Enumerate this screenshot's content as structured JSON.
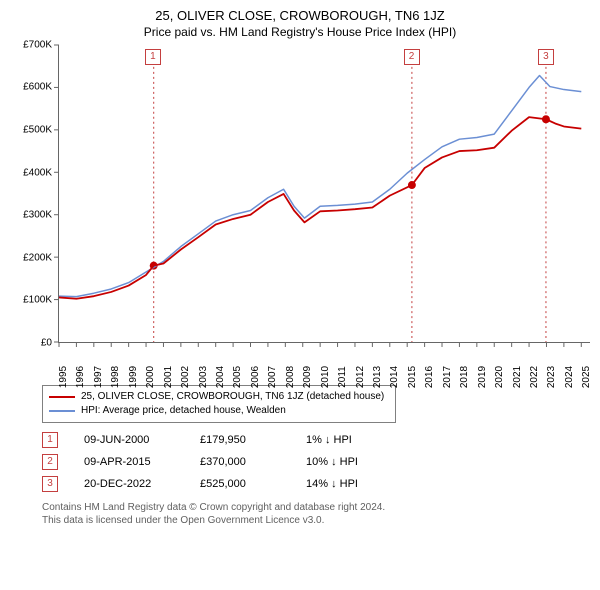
{
  "title": "25, OLIVER CLOSE, CROWBOROUGH, TN6 1JZ",
  "subtitle": "Price paid vs. HM Land Registry's House Price Index (HPI)",
  "chart": {
    "type": "line",
    "background_color": "#ffffff",
    "ylim": [
      0,
      700000
    ],
    "ytick_step": 100000,
    "ytick_labels": [
      "£0",
      "£100K",
      "£200K",
      "£300K",
      "£400K",
      "£500K",
      "£600K",
      "£700K"
    ],
    "xlim": [
      1995,
      2025.5
    ],
    "x_years": [
      1995,
      1996,
      1997,
      1998,
      1999,
      2000,
      2001,
      2002,
      2003,
      2004,
      2005,
      2006,
      2007,
      2008,
      2009,
      2010,
      2011,
      2012,
      2013,
      2014,
      2015,
      2016,
      2017,
      2018,
      2019,
      2020,
      2021,
      2022,
      2023,
      2024,
      2025
    ],
    "axis_color": "#666666",
    "marker_line_color": "#c43f3f",
    "marker_dash": "2,3",
    "series": [
      {
        "name": "HPI: Average price, detached house, Wealden",
        "color": "#6b8fd4",
        "line_width": 1.5,
        "data": [
          [
            1995.0,
            108000
          ],
          [
            1996.0,
            107000
          ],
          [
            1997.0,
            115000
          ],
          [
            1998.0,
            125000
          ],
          [
            1999.0,
            140000
          ],
          [
            2000.0,
            165000
          ],
          [
            2001.0,
            190000
          ],
          [
            2002.0,
            225000
          ],
          [
            2003.0,
            255000
          ],
          [
            2004.0,
            285000
          ],
          [
            2005.0,
            300000
          ],
          [
            2006.0,
            310000
          ],
          [
            2007.0,
            340000
          ],
          [
            2007.9,
            360000
          ],
          [
            2008.5,
            320000
          ],
          [
            2009.1,
            292000
          ],
          [
            2010.0,
            320000
          ],
          [
            2011.0,
            322000
          ],
          [
            2012.0,
            325000
          ],
          [
            2013.0,
            330000
          ],
          [
            2014.0,
            360000
          ],
          [
            2015.0,
            398000
          ],
          [
            2016.0,
            430000
          ],
          [
            2017.0,
            460000
          ],
          [
            2018.0,
            478000
          ],
          [
            2019.0,
            482000
          ],
          [
            2020.0,
            490000
          ],
          [
            2021.0,
            545000
          ],
          [
            2022.0,
            600000
          ],
          [
            2022.6,
            628000
          ],
          [
            2023.2,
            602000
          ],
          [
            2024.0,
            595000
          ],
          [
            2025.0,
            590000
          ]
        ]
      },
      {
        "name": "25, OLIVER CLOSE, CROWBOROUGH, TN6 1JZ (detached house)",
        "color": "#c70000",
        "line_width": 1.8,
        "data": [
          [
            1995.0,
            105000
          ],
          [
            1996.0,
            102000
          ],
          [
            1997.0,
            108000
          ],
          [
            1998.0,
            118000
          ],
          [
            1999.0,
            133000
          ],
          [
            2000.0,
            158000
          ],
          [
            2000.44,
            179950
          ],
          [
            2001.0,
            185000
          ],
          [
            2002.0,
            218000
          ],
          [
            2003.0,
            247000
          ],
          [
            2004.0,
            277000
          ],
          [
            2005.0,
            290000
          ],
          [
            2006.0,
            300000
          ],
          [
            2007.0,
            330000
          ],
          [
            2007.9,
            349000
          ],
          [
            2008.5,
            310000
          ],
          [
            2009.1,
            282000
          ],
          [
            2010.0,
            308000
          ],
          [
            2011.0,
            310000
          ],
          [
            2012.0,
            313000
          ],
          [
            2013.0,
            317000
          ],
          [
            2014.0,
            345000
          ],
          [
            2015.27,
            370000
          ],
          [
            2016.0,
            410000
          ],
          [
            2017.0,
            435000
          ],
          [
            2018.0,
            450000
          ],
          [
            2019.0,
            452000
          ],
          [
            2020.0,
            458000
          ],
          [
            2021.0,
            498000
          ],
          [
            2022.0,
            530000
          ],
          [
            2022.97,
            525000
          ],
          [
            2023.5,
            515000
          ],
          [
            2024.0,
            508000
          ],
          [
            2025.0,
            503000
          ]
        ]
      }
    ],
    "markers": [
      {
        "label": "1",
        "x": 2000.44,
        "y": 179950,
        "color": "#c43f3f"
      },
      {
        "label": "2",
        "x": 2015.27,
        "y": 370000,
        "color": "#c43f3f"
      },
      {
        "label": "3",
        "x": 2022.97,
        "y": 525000,
        "color": "#c43f3f"
      }
    ]
  },
  "legend": [
    {
      "color": "#c70000",
      "label": "25, OLIVER CLOSE, CROWBOROUGH, TN6 1JZ (detached house)"
    },
    {
      "color": "#6b8fd4",
      "label": "HPI: Average price, detached house, Wealden"
    }
  ],
  "sales": [
    {
      "badge": "1",
      "badge_color": "#c43f3f",
      "date": "09-JUN-2000",
      "price": "£179,950",
      "hpi": "1% ↓ HPI"
    },
    {
      "badge": "2",
      "badge_color": "#c43f3f",
      "date": "09-APR-2015",
      "price": "£370,000",
      "hpi": "10% ↓ HPI"
    },
    {
      "badge": "3",
      "badge_color": "#c43f3f",
      "date": "20-DEC-2022",
      "price": "£525,000",
      "hpi": "14% ↓ HPI"
    }
  ],
  "footer_line1": "Contains HM Land Registry data © Crown copyright and database right 2024.",
  "footer_line2": "This data is licensed under the Open Government Licence v3.0."
}
